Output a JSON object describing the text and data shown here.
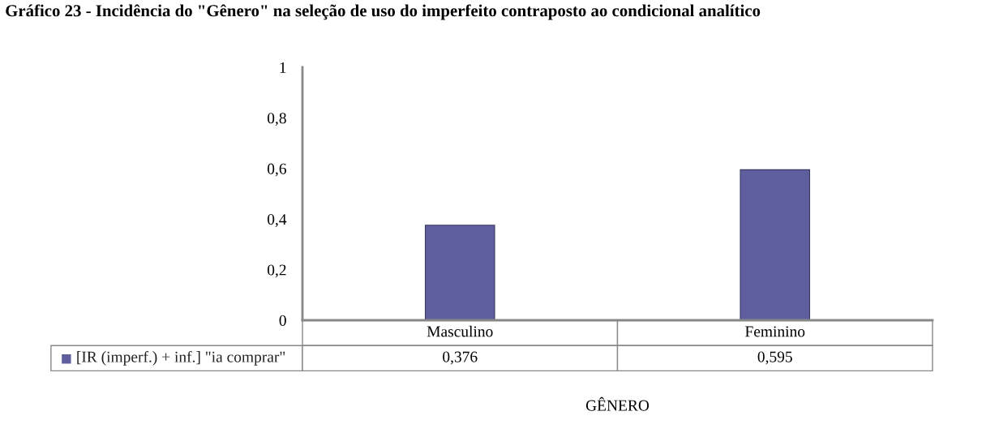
{
  "chart_data": {
    "type": "bar",
    "title": "Gráfico 23 - Incidência do \"Gênero\" na seleção de uso do imperfeito contraposto ao condicional analítico",
    "xlabel": "GÊNERO",
    "categories": [
      "Masculino",
      "Feminino"
    ],
    "series": [
      {
        "name": "[IR (imperf.) + inf.] \"ia comprar\"",
        "color": "#5f5f9f",
        "values": [
          0.376,
          0.595
        ],
        "value_labels": [
          "0,376",
          "0,595"
        ]
      }
    ],
    "ylim": [
      0,
      1
    ],
    "yticks": [
      0,
      {
        "value": 0.2,
        "label": "0,2"
      },
      {
        "value": 0.4,
        "label": "0,4"
      },
      {
        "value": 0.6,
        "label": "0,6"
      },
      {
        "value": 0.8,
        "label": "0,8"
      },
      1
    ],
    "grid": false
  }
}
